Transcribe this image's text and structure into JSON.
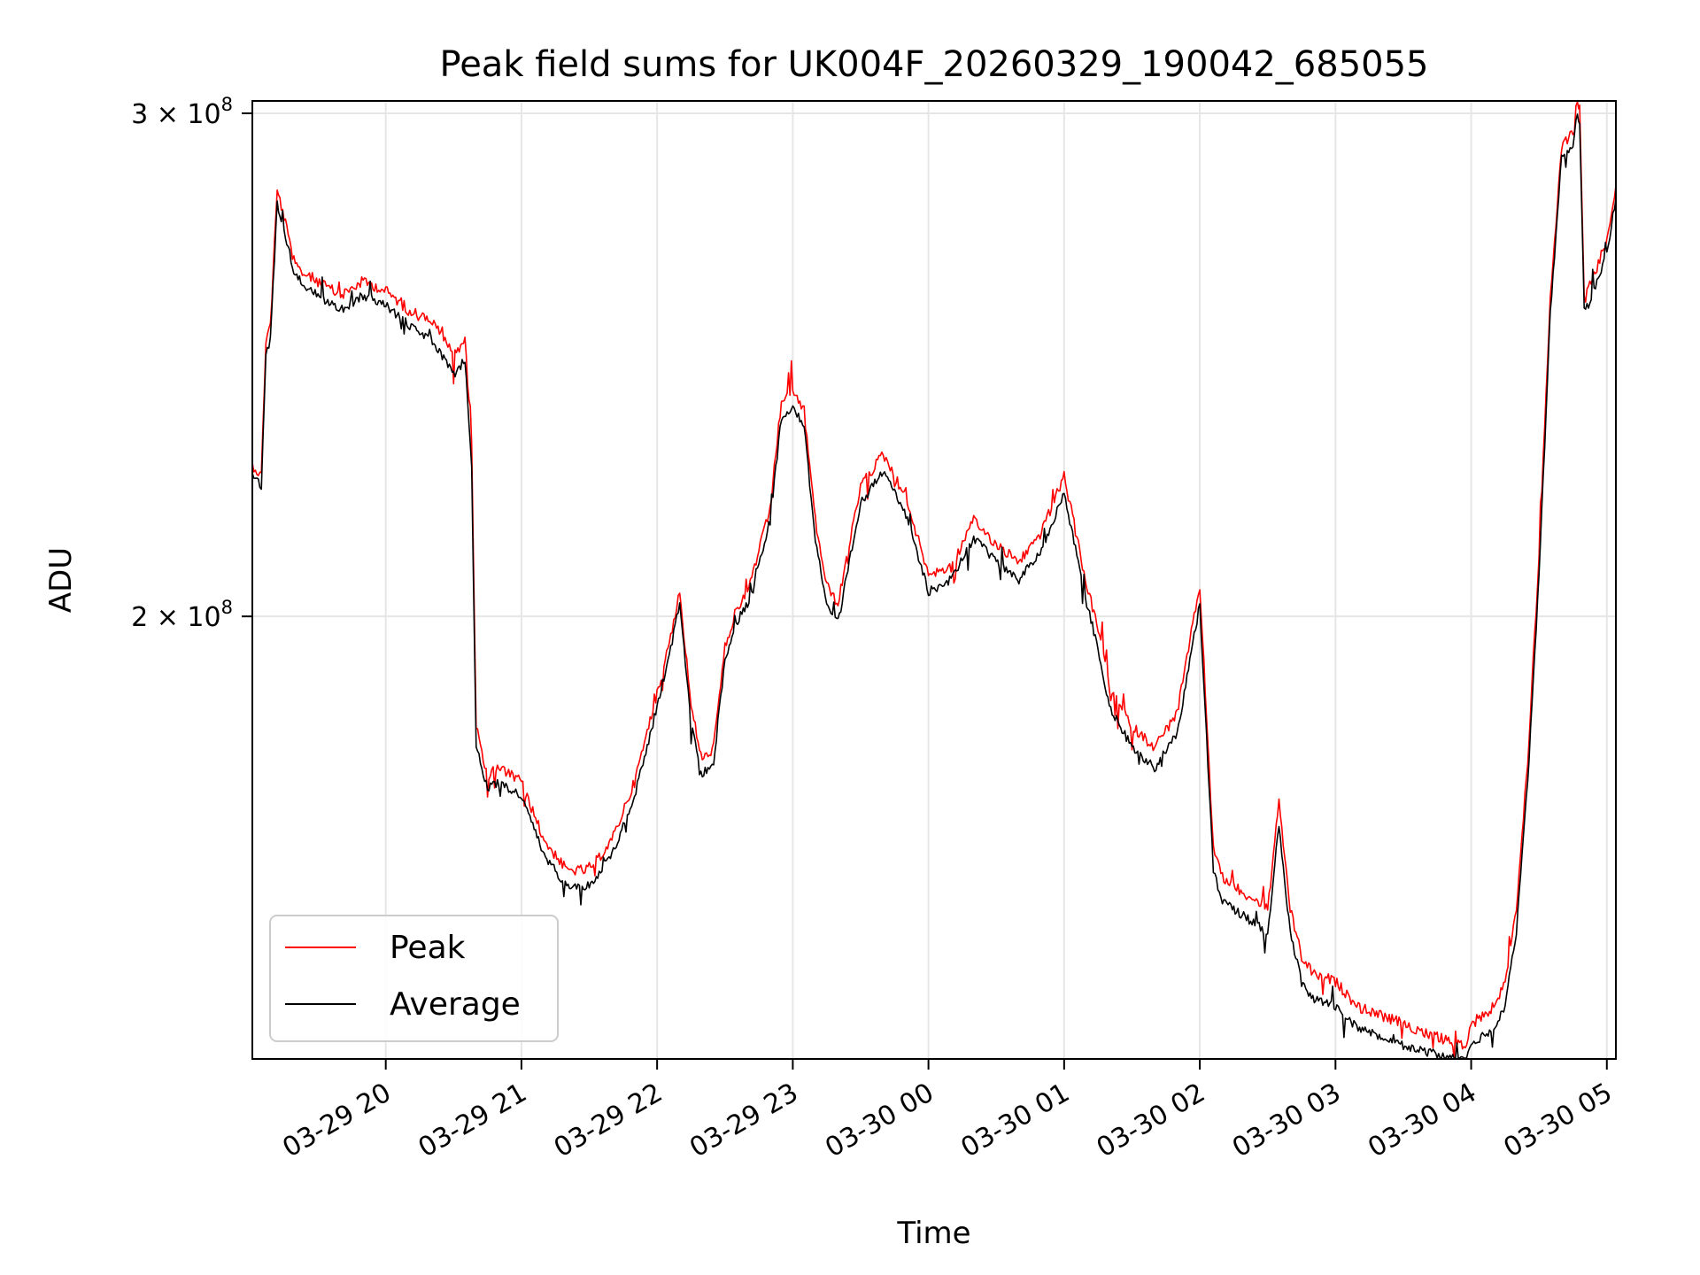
{
  "chart_data": {
    "type": "line",
    "title": "Peak field sums for UK004F_20260329_190042_685055",
    "xlabel": "Time",
    "ylabel": "ADU",
    "yscale": "log",
    "grid": true,
    "legend": "lower-left",
    "xlim": [
      "2026-03-29 19:01",
      "2026-03-30 05:04"
    ],
    "ylim": [
      140000000,
      303000000
    ],
    "x_ticks": [
      "03-29 20",
      "03-29 21",
      "03-29 22",
      "03-29 23",
      "03-30 00",
      "03-30 01",
      "03-30 02",
      "03-30 03",
      "03-30 04",
      "03-30 05"
    ],
    "x_tick_times": [
      "2026-03-29 20:00",
      "2026-03-29 21:00",
      "2026-03-29 22:00",
      "2026-03-29 23:00",
      "2026-03-30 00:00",
      "2026-03-30 01:00",
      "2026-03-30 02:00",
      "2026-03-30 03:00",
      "2026-03-30 04:00",
      "2026-03-30 05:00"
    ],
    "y_ticks": [
      {
        "value": 300000000,
        "mantissa": "3",
        "exponent": "8"
      },
      {
        "value": 200000000,
        "mantissa": "2",
        "exponent": "8"
      }
    ],
    "series": [
      {
        "name": "Peak",
        "color": "#ff0000",
        "x": [
          "2026-03-29 19:01",
          "2026-03-29 19:05",
          "2026-03-29 19:07",
          "2026-03-29 19:09",
          "2026-03-29 19:12",
          "2026-03-29 19:15",
          "2026-03-29 19:20",
          "2026-03-29 19:30",
          "2026-03-29 19:40",
          "2026-03-29 19:50",
          "2026-03-29 20:00",
          "2026-03-29 20:10",
          "2026-03-29 20:20",
          "2026-03-29 20:30",
          "2026-03-29 20:35",
          "2026-03-29 20:38",
          "2026-03-29 20:40",
          "2026-03-29 20:45",
          "2026-03-29 20:50",
          "2026-03-29 21:00",
          "2026-03-29 21:10",
          "2026-03-29 21:20",
          "2026-03-29 21:30",
          "2026-03-29 21:40",
          "2026-03-29 21:50",
          "2026-03-29 22:00",
          "2026-03-29 22:06",
          "2026-03-29 22:10",
          "2026-03-29 22:15",
          "2026-03-29 22:20",
          "2026-03-29 22:25",
          "2026-03-29 22:30",
          "2026-03-29 22:35",
          "2026-03-29 22:40",
          "2026-03-29 22:50",
          "2026-03-29 22:55",
          "2026-03-29 23:00",
          "2026-03-29 23:05",
          "2026-03-29 23:10",
          "2026-03-29 23:15",
          "2026-03-29 23:20",
          "2026-03-29 23:30",
          "2026-03-29 23:40",
          "2026-03-29 23:50",
          "2026-03-30 00:00",
          "2026-03-30 00:10",
          "2026-03-30 00:20",
          "2026-03-30 00:30",
          "2026-03-30 00:40",
          "2026-03-30 00:50",
          "2026-03-30 01:00",
          "2026-03-30 01:10",
          "2026-03-30 01:15",
          "2026-03-30 01:20",
          "2026-03-30 01:30",
          "2026-03-30 01:40",
          "2026-03-30 01:50",
          "2026-03-30 02:00",
          "2026-03-30 02:06",
          "2026-03-30 02:10",
          "2026-03-30 02:20",
          "2026-03-30 02:30",
          "2026-03-30 02:35",
          "2026-03-30 02:40",
          "2026-03-30 02:45",
          "2026-03-30 02:50",
          "2026-03-30 03:00",
          "2026-03-30 03:10",
          "2026-03-30 03:20",
          "2026-03-30 03:30",
          "2026-03-30 03:40",
          "2026-03-30 03:50",
          "2026-03-30 03:58",
          "2026-03-30 04:00",
          "2026-03-30 04:05",
          "2026-03-30 04:10",
          "2026-03-30 04:15",
          "2026-03-30 04:20",
          "2026-03-30 04:25",
          "2026-03-30 04:30",
          "2026-03-30 04:35",
          "2026-03-30 04:40",
          "2026-03-30 04:45",
          "2026-03-30 04:47",
          "2026-03-30 04:48",
          "2026-03-30 04:50",
          "2026-03-30 04:55",
          "2026-03-30 05:00",
          "2026-03-30 05:04"
        ],
        "values": [
          226000000,
          224000000,
          250000000,
          253000000,
          282000000,
          276000000,
          265000000,
          262000000,
          259000000,
          262000000,
          260000000,
          256000000,
          254000000,
          247000000,
          250000000,
          230000000,
          183000000,
          176000000,
          177000000,
          175000000,
          167000000,
          163000000,
          163000000,
          167000000,
          175000000,
          188000000,
          197000000,
          204000000,
          186000000,
          178000000,
          180000000,
          195000000,
          201000000,
          204000000,
          218000000,
          238000000,
          240000000,
          236000000,
          216000000,
          205000000,
          202000000,
          222000000,
          228000000,
          220000000,
          207000000,
          208000000,
          216000000,
          212000000,
          209000000,
          214000000,
          224000000,
          205000000,
          198000000,
          189000000,
          183000000,
          180000000,
          185000000,
          205000000,
          166000000,
          162000000,
          160000000,
          158000000,
          172000000,
          158000000,
          152000000,
          150000000,
          149000000,
          146000000,
          145000000,
          144000000,
          143000000,
          142000000,
          141500000,
          144000000,
          145000000,
          146000000,
          149000000,
          158000000,
          178000000,
          210000000,
          258000000,
          292000000,
          296000000,
          303000000,
          301000000,
          258000000,
          264000000,
          271000000,
          283000000
        ]
      },
      {
        "name": "Average",
        "color": "#000000",
        "x": [
          "2026-03-29 19:01",
          "2026-03-29 19:05",
          "2026-03-29 19:07",
          "2026-03-29 19:09",
          "2026-03-29 19:12",
          "2026-03-29 19:15",
          "2026-03-29 19:20",
          "2026-03-29 19:30",
          "2026-03-29 19:40",
          "2026-03-29 19:50",
          "2026-03-29 20:00",
          "2026-03-29 20:10",
          "2026-03-29 20:20",
          "2026-03-29 20:30",
          "2026-03-29 20:35",
          "2026-03-29 20:38",
          "2026-03-29 20:40",
          "2026-03-29 20:45",
          "2026-03-29 20:50",
          "2026-03-29 21:00",
          "2026-03-29 21:10",
          "2026-03-29 21:20",
          "2026-03-29 21:30",
          "2026-03-29 21:40",
          "2026-03-29 21:50",
          "2026-03-29 22:00",
          "2026-03-29 22:06",
          "2026-03-29 22:10",
          "2026-03-29 22:15",
          "2026-03-29 22:20",
          "2026-03-29 22:25",
          "2026-03-29 22:30",
          "2026-03-29 22:35",
          "2026-03-29 22:40",
          "2026-03-29 22:50",
          "2026-03-29 22:55",
          "2026-03-29 23:00",
          "2026-03-29 23:05",
          "2026-03-29 23:10",
          "2026-03-29 23:15",
          "2026-03-29 23:20",
          "2026-03-29 23:30",
          "2026-03-29 23:40",
          "2026-03-29 23:50",
          "2026-03-30 00:00",
          "2026-03-30 00:10",
          "2026-03-30 00:20",
          "2026-03-30 00:30",
          "2026-03-30 00:40",
          "2026-03-30 00:50",
          "2026-03-30 01:00",
          "2026-03-30 01:10",
          "2026-03-30 01:15",
          "2026-03-30 01:20",
          "2026-03-30 01:30",
          "2026-03-30 01:40",
          "2026-03-30 01:50",
          "2026-03-30 02:00",
          "2026-03-30 02:06",
          "2026-03-30 02:10",
          "2026-03-30 02:20",
          "2026-03-30 02:30",
          "2026-03-30 02:35",
          "2026-03-30 02:40",
          "2026-03-30 02:45",
          "2026-03-30 02:50",
          "2026-03-30 03:00",
          "2026-03-30 03:10",
          "2026-03-30 03:20",
          "2026-03-30 03:30",
          "2026-03-30 03:40",
          "2026-03-30 03:50",
          "2026-03-30 03:58",
          "2026-03-30 04:00",
          "2026-03-30 04:05",
          "2026-03-30 04:10",
          "2026-03-30 04:15",
          "2026-03-30 04:20",
          "2026-03-30 04:25",
          "2026-03-30 04:30",
          "2026-03-30 04:35",
          "2026-03-30 04:40",
          "2026-03-30 04:45",
          "2026-03-30 04:47",
          "2026-03-30 04:48",
          "2026-03-30 04:50",
          "2026-03-30 04:55",
          "2026-03-30 05:00",
          "2026-03-30 05:04"
        ],
        "values": [
          224000000,
          222000000,
          247000000,
          250000000,
          279000000,
          273000000,
          263000000,
          259000000,
          256000000,
          259000000,
          257000000,
          253000000,
          250000000,
          243000000,
          246000000,
          226000000,
          180000000,
          174000000,
          175000000,
          173000000,
          165000000,
          161000000,
          161000000,
          165000000,
          173000000,
          186000000,
          195000000,
          202000000,
          184000000,
          176000000,
          178000000,
          193000000,
          199000000,
          202000000,
          216000000,
          235000000,
          237000000,
          233000000,
          213000000,
          202000000,
          199000000,
          219000000,
          225000000,
          217000000,
          204000000,
          206000000,
          213000000,
          209000000,
          206000000,
          211000000,
          221000000,
          202000000,
          195000000,
          186000000,
          180000000,
          177000000,
          182000000,
          202000000,
          163000000,
          159000000,
          157000000,
          155000000,
          169000000,
          155000000,
          149000000,
          147000000,
          146000000,
          143500000,
          142500000,
          141500000,
          140800000,
          140200000,
          139800000,
          141500000,
          142500000,
          143500000,
          146000000,
          155000000,
          175000000,
          207000000,
          255000000,
          289000000,
          293000000,
          300000000,
          298000000,
          255000000,
          261000000,
          268000000,
          280000000
        ]
      }
    ]
  }
}
